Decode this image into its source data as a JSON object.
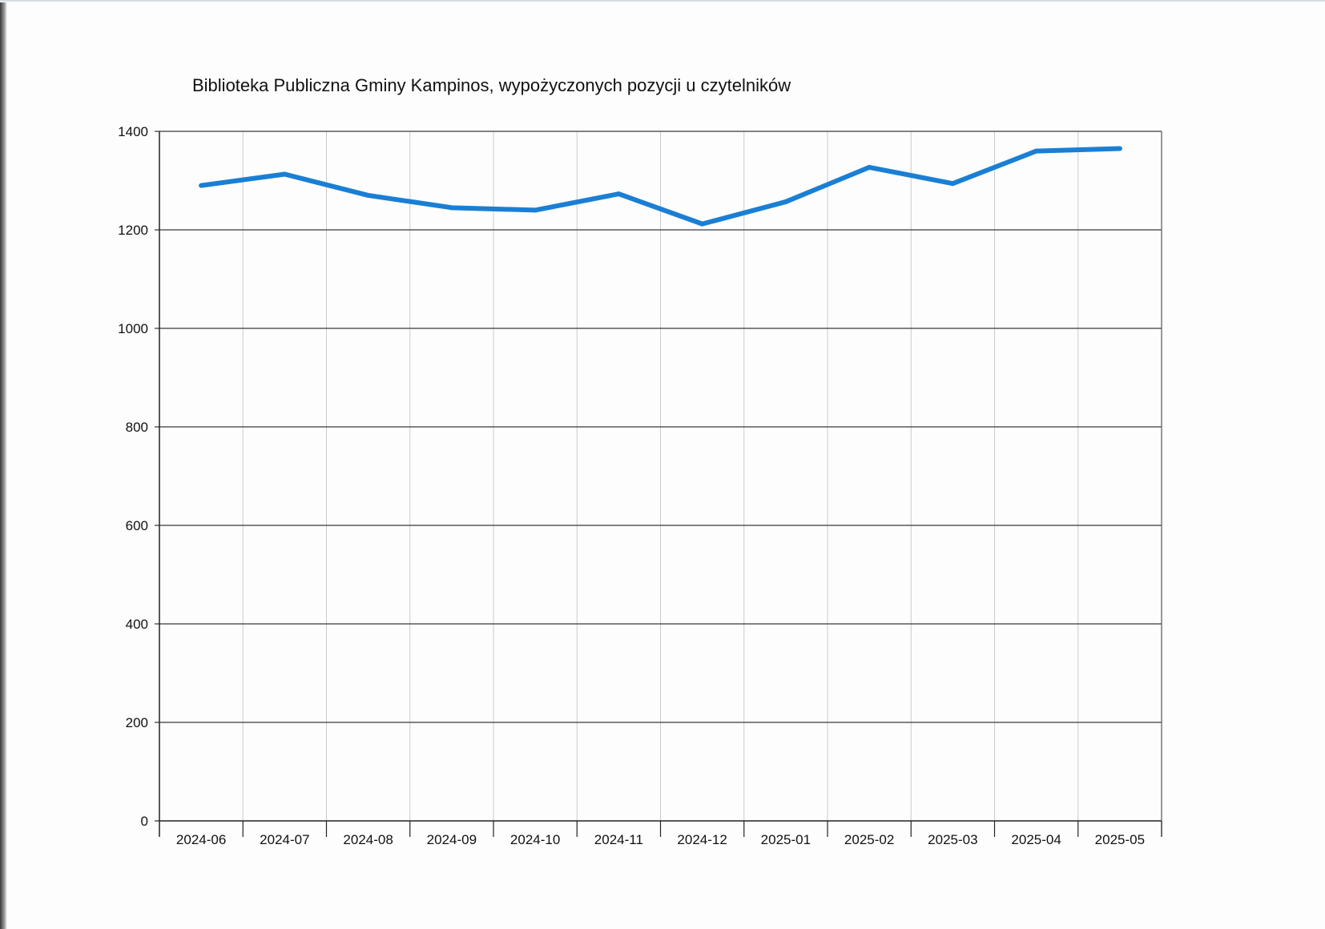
{
  "chart_data": {
    "type": "line",
    "title": "Biblioteka Publiczna Gminy Kampinos, wypożyczonych pozycji u czytelników",
    "categories": [
      "2024-06",
      "2024-07",
      "2024-08",
      "2024-09",
      "2024-10",
      "2024-11",
      "2024-12",
      "2025-01",
      "2025-02",
      "2025-03",
      "2025-04",
      "2025-05"
    ],
    "series": [
      {
        "values": [
          1290,
          1313,
          1270,
          1245,
          1240,
          1273,
          1212,
          1257,
          1327,
          1294,
          1360,
          1365
        ],
        "color": "#1a7fd4"
      }
    ],
    "y_ticks": [
      "0",
      "200",
      "400",
      "600",
      "800",
      "1000",
      "1200",
      "1400"
    ],
    "ylim": [
      0,
      1400
    ],
    "grid": true,
    "xlabel": "",
    "ylabel": ""
  }
}
